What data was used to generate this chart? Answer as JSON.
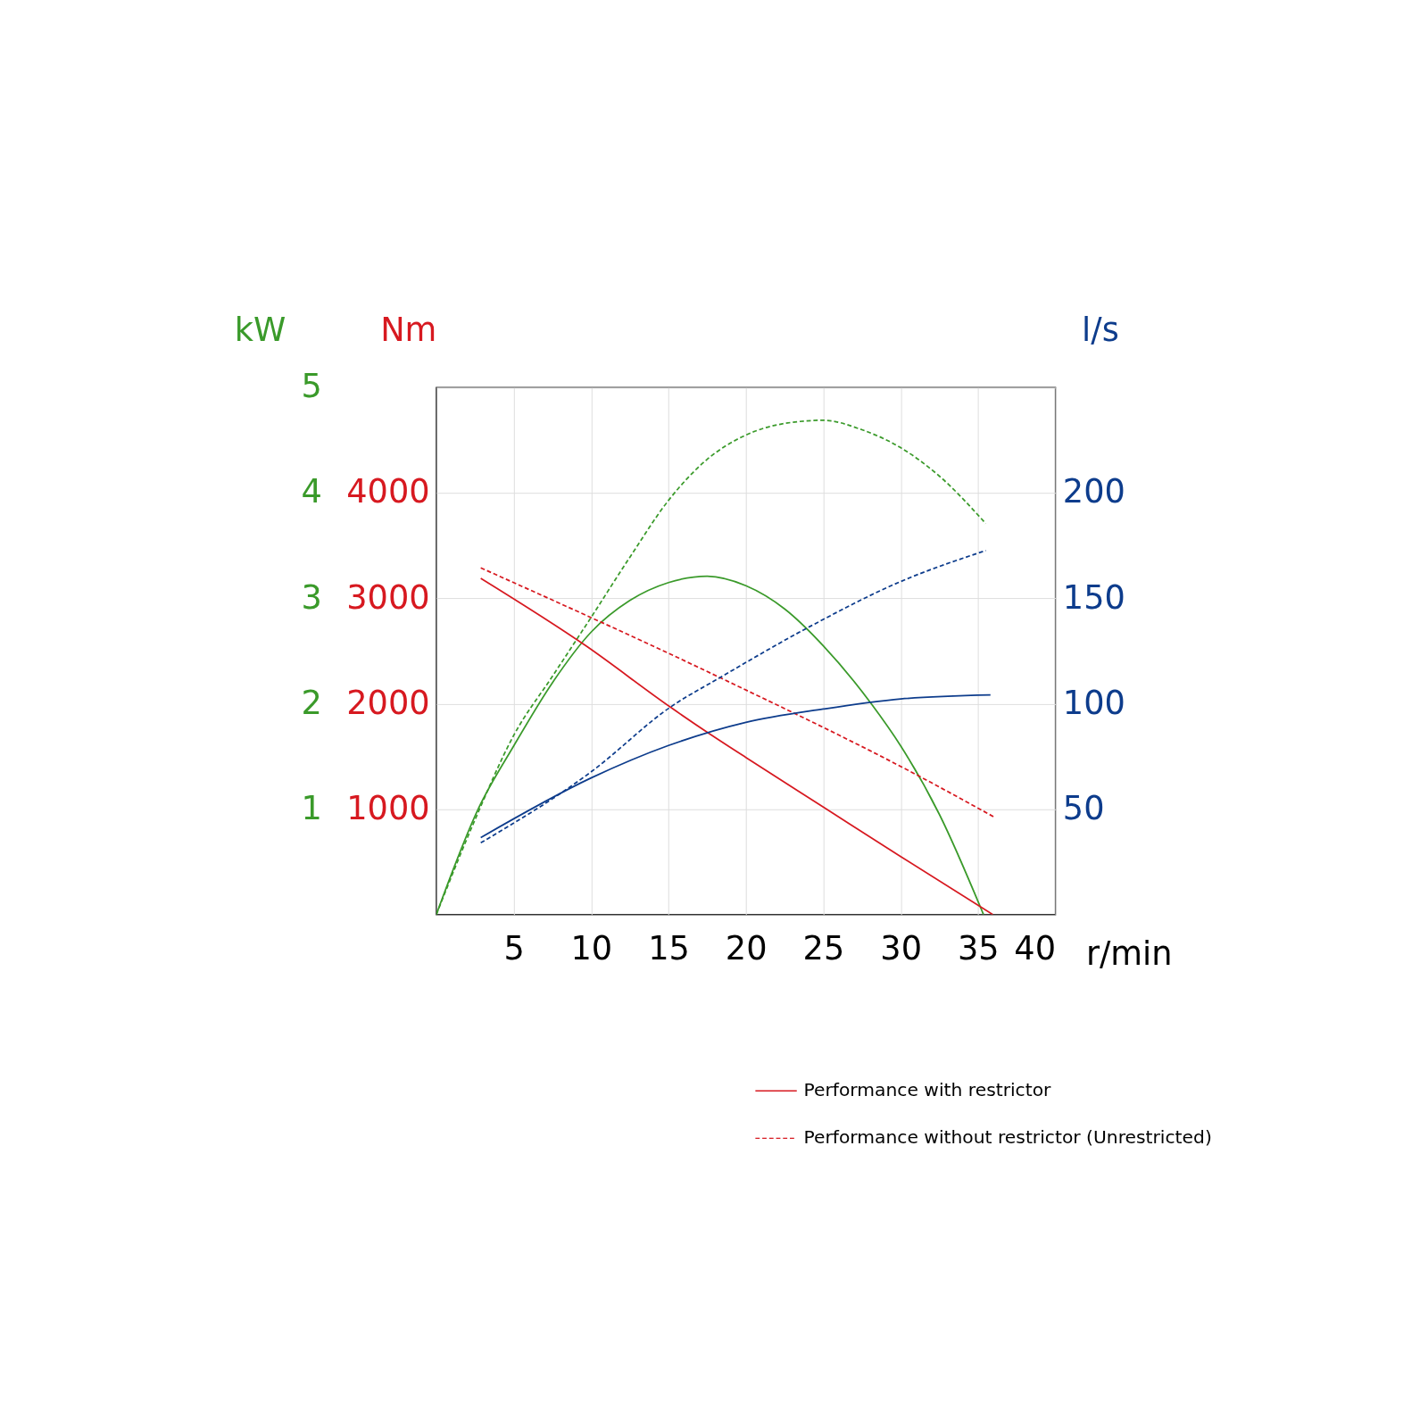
{
  "chart_data": {
    "type": "line",
    "xlabel": "r/min",
    "ylabel": "kW",
    "y2label": "Nm",
    "y3label": "l/s",
    "xlim": [
      0,
      40
    ],
    "xticks": [
      5,
      10,
      15,
      20,
      25,
      30,
      35,
      40
    ],
    "ylim": [
      0,
      5
    ],
    "yticks": [
      1,
      2,
      3,
      4,
      5
    ],
    "y2lim": [
      0,
      5000
    ],
    "y2ticks": [
      1000,
      2000,
      3000,
      4000
    ],
    "y3lim": [
      0,
      250
    ],
    "y3ticks": [
      50,
      100,
      150,
      200
    ],
    "grid": true,
    "legend": "bottom right",
    "marker": "none",
    "series": [
      {
        "axis": "y",
        "color": "#3a9a2a",
        "line_style": "solid",
        "x": [
          0,
          2.7,
          5,
          7.5,
          10,
          12.5,
          15,
          17.5,
          20,
          22.5,
          25,
          28.1,
          30,
          32.5,
          35.35
        ],
        "values": [
          0,
          1.0,
          1.6,
          2.2,
          2.68,
          2.98,
          3.15,
          3.21,
          3.12,
          2.9,
          2.55,
          2.0,
          1.6,
          0.95,
          0
        ]
      },
      {
        "axis": "y",
        "color": "#3a9a2a",
        "line_style": "dashed",
        "x": [
          0,
          2.5,
          5,
          7.5,
          10,
          12.5,
          15,
          17.5,
          20,
          22.5,
          25,
          27.5,
          30,
          32.5,
          35.5
        ],
        "values": [
          0,
          0.9,
          1.7,
          2.26,
          2.82,
          3.39,
          3.93,
          4.32,
          4.55,
          4.66,
          4.69,
          4.6,
          4.43,
          4.16,
          3.71
        ]
      },
      {
        "axis": "y2",
        "name": "Performance with restrictor",
        "color": "#d71920",
        "line_style": "solid",
        "x": [
          2.87,
          9.66,
          15.1,
          17.7,
          20,
          25,
          30,
          35.95
        ],
        "values": [
          3190,
          2550,
          1970,
          1710,
          1490,
          1020,
          550,
          0
        ]
      },
      {
        "axis": "y2",
        "name": "Performance without restrictor (Unrestricted)",
        "color": "#d71920",
        "line_style": "dashed",
        "x": [
          2.87,
          18.3,
          31.1,
          36.1
        ],
        "values": [
          3290,
          2250,
          1320,
          920
        ]
      },
      {
        "axis": "y3",
        "color": "#0d3c8c",
        "line_style": "solid",
        "x": [
          2.87,
          10,
          15,
          20,
          25,
          30,
          35.8
        ],
        "values": [
          36.5,
          64.8,
          80.2,
          91.2,
          97.5,
          102.3,
          104.2
        ]
      },
      {
        "axis": "y3",
        "color": "#0d3c8c",
        "line_style": "dashed",
        "x": [
          2.87,
          10,
          15.2,
          18.3,
          24.2,
          30,
          35.5
        ],
        "values": [
          34,
          67.7,
          98.8,
          112.3,
          136.9,
          158,
          172.7
        ]
      }
    ]
  }
}
